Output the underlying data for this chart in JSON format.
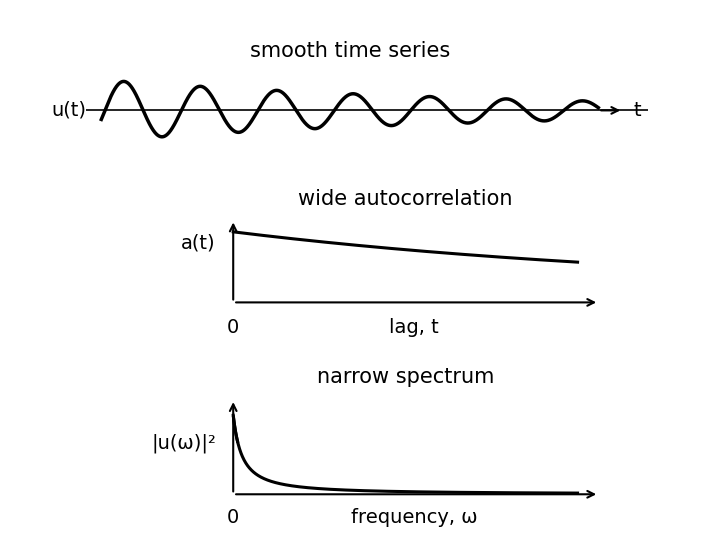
{
  "title_top": "smooth time series",
  "label_ut": "u(t)",
  "label_t_top": "t",
  "label_wide_ac": "wide autocorrelation",
  "label_at": "a(t)",
  "label_lag": "lag, t",
  "label_zero_ac": "0",
  "label_narrow": "narrow spectrum",
  "label_pow": "|u(ω)|²",
  "label_freq": "frequency, ω",
  "label_zero_sp": "0",
  "bg_color": "#ffffff",
  "line_color": "#000000",
  "font_size_title": 15,
  "font_size_label": 14,
  "font_size_axis": 13
}
